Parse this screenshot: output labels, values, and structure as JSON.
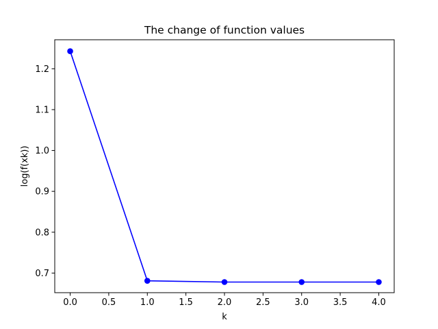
{
  "chart_data": {
    "type": "line",
    "title": "The change of function values",
    "xlabel": "k",
    "ylabel": "log(f(xk))",
    "x": [
      0,
      1,
      2,
      3,
      4
    ],
    "series": [
      {
        "values": [
          1.243,
          0.681,
          0.678,
          0.678,
          0.678
        ],
        "color": "#0000ff",
        "marker": "circle"
      }
    ],
    "xlim": [
      -0.2,
      4.2
    ],
    "ylim": [
      0.652,
      1.271
    ],
    "xticks": [
      0.0,
      0.5,
      1.0,
      1.5,
      2.0,
      2.5,
      3.0,
      3.5,
      4.0
    ],
    "xtick_labels": [
      "0.0",
      "0.5",
      "1.0",
      "1.5",
      "2.0",
      "2.5",
      "3.0",
      "3.5",
      "4.0"
    ],
    "yticks": [
      0.7,
      0.8,
      0.9,
      1.0,
      1.1,
      1.2
    ],
    "ytick_labels": [
      "0.7",
      "0.8",
      "0.9",
      "1.0",
      "1.1",
      "1.2"
    ],
    "grid": false,
    "legend": false
  }
}
